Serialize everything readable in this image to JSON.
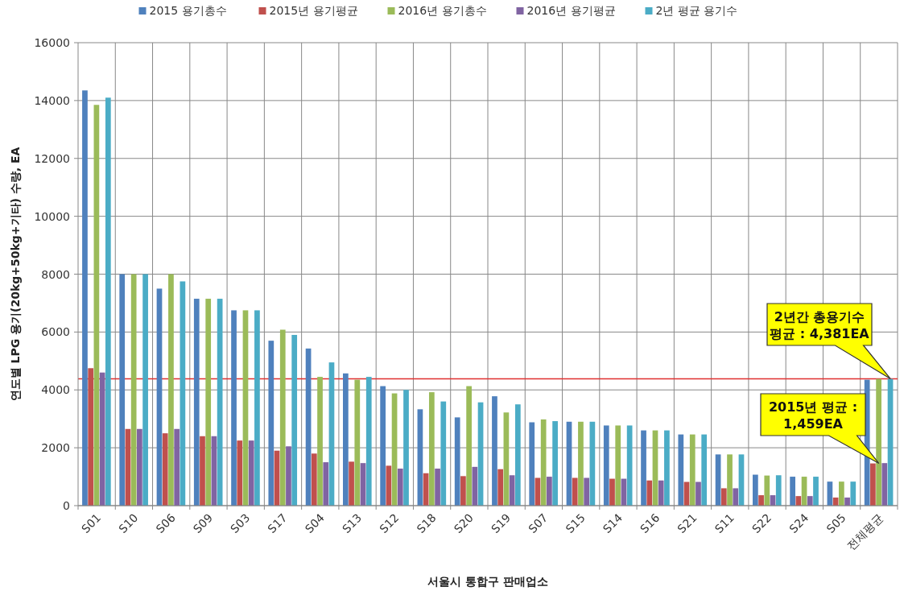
{
  "chart_data": {
    "type": "bar",
    "xlabel": "서울시 통합구 판매업소",
    "ylabel": "연도별 LPG 용기(20kg+50kg+기타) 수량, EA",
    "categories": [
      "S01",
      "S10",
      "S06",
      "S09",
      "S03",
      "S17",
      "S04",
      "S13",
      "S12",
      "S18",
      "S20",
      "S19",
      "S07",
      "S15",
      "S14",
      "S16",
      "S21",
      "S11",
      "S22",
      "S24",
      "S05",
      "전체평균"
    ],
    "series": [
      {
        "name": "2015 용기총수",
        "color": "#4f81bd",
        "values": [
          14350,
          8000,
          7500,
          7150,
          6750,
          5700,
          5430,
          4570,
          4130,
          3330,
          3050,
          3780,
          2880,
          2900,
          2770,
          2600,
          2460,
          1770,
          1070,
          1000,
          830,
          4350
        ]
      },
      {
        "name": "2015년 용기평균",
        "color": "#c0504d",
        "values": [
          4750,
          2650,
          2500,
          2400,
          2250,
          1900,
          1800,
          1520,
          1380,
          1120,
          1020,
          1260,
          960,
          960,
          930,
          870,
          820,
          600,
          360,
          330,
          280,
          1459
        ]
      },
      {
        "name": "2016년 용기총수",
        "color": "#9bbb59",
        "values": [
          13850,
          8000,
          8000,
          7150,
          6750,
          6080,
          4450,
          4350,
          3880,
          3920,
          4130,
          3220,
          2980,
          2900,
          2770,
          2600,
          2460,
          1770,
          1040,
          1000,
          830,
          4380
        ]
      },
      {
        "name": "2016년 용기평균",
        "color": "#8064a2",
        "values": [
          4600,
          2650,
          2650,
          2400,
          2250,
          2050,
          1500,
          1470,
          1280,
          1280,
          1340,
          1050,
          1000,
          960,
          930,
          870,
          820,
          600,
          360,
          330,
          280,
          1470
        ]
      },
      {
        "name": "2년 평균 용기수",
        "color": "#4bacc6",
        "values": [
          14100,
          8000,
          7750,
          7150,
          6750,
          5900,
          4950,
          4450,
          4000,
          3600,
          3570,
          3500,
          2920,
          2900,
          2770,
          2600,
          2460,
          1770,
          1050,
          1000,
          830,
          4381
        ]
      }
    ],
    "ylim": [
      0,
      16000
    ],
    "yticks": [
      0,
      2000,
      4000,
      6000,
      8000,
      10000,
      12000,
      14000,
      16000
    ],
    "grid": true,
    "legend": "top",
    "ref_lines": [
      {
        "axis": "y",
        "value": 4381,
        "color": "#e03030"
      }
    ],
    "annotations": [
      {
        "text": "2년간 총용기수\n평균 : 4,381EA",
        "x": "전체평균",
        "y": 4381
      },
      {
        "text": "2015년 평균 :\n1,459EA",
        "x": "전체평균",
        "y": 1459
      }
    ]
  }
}
